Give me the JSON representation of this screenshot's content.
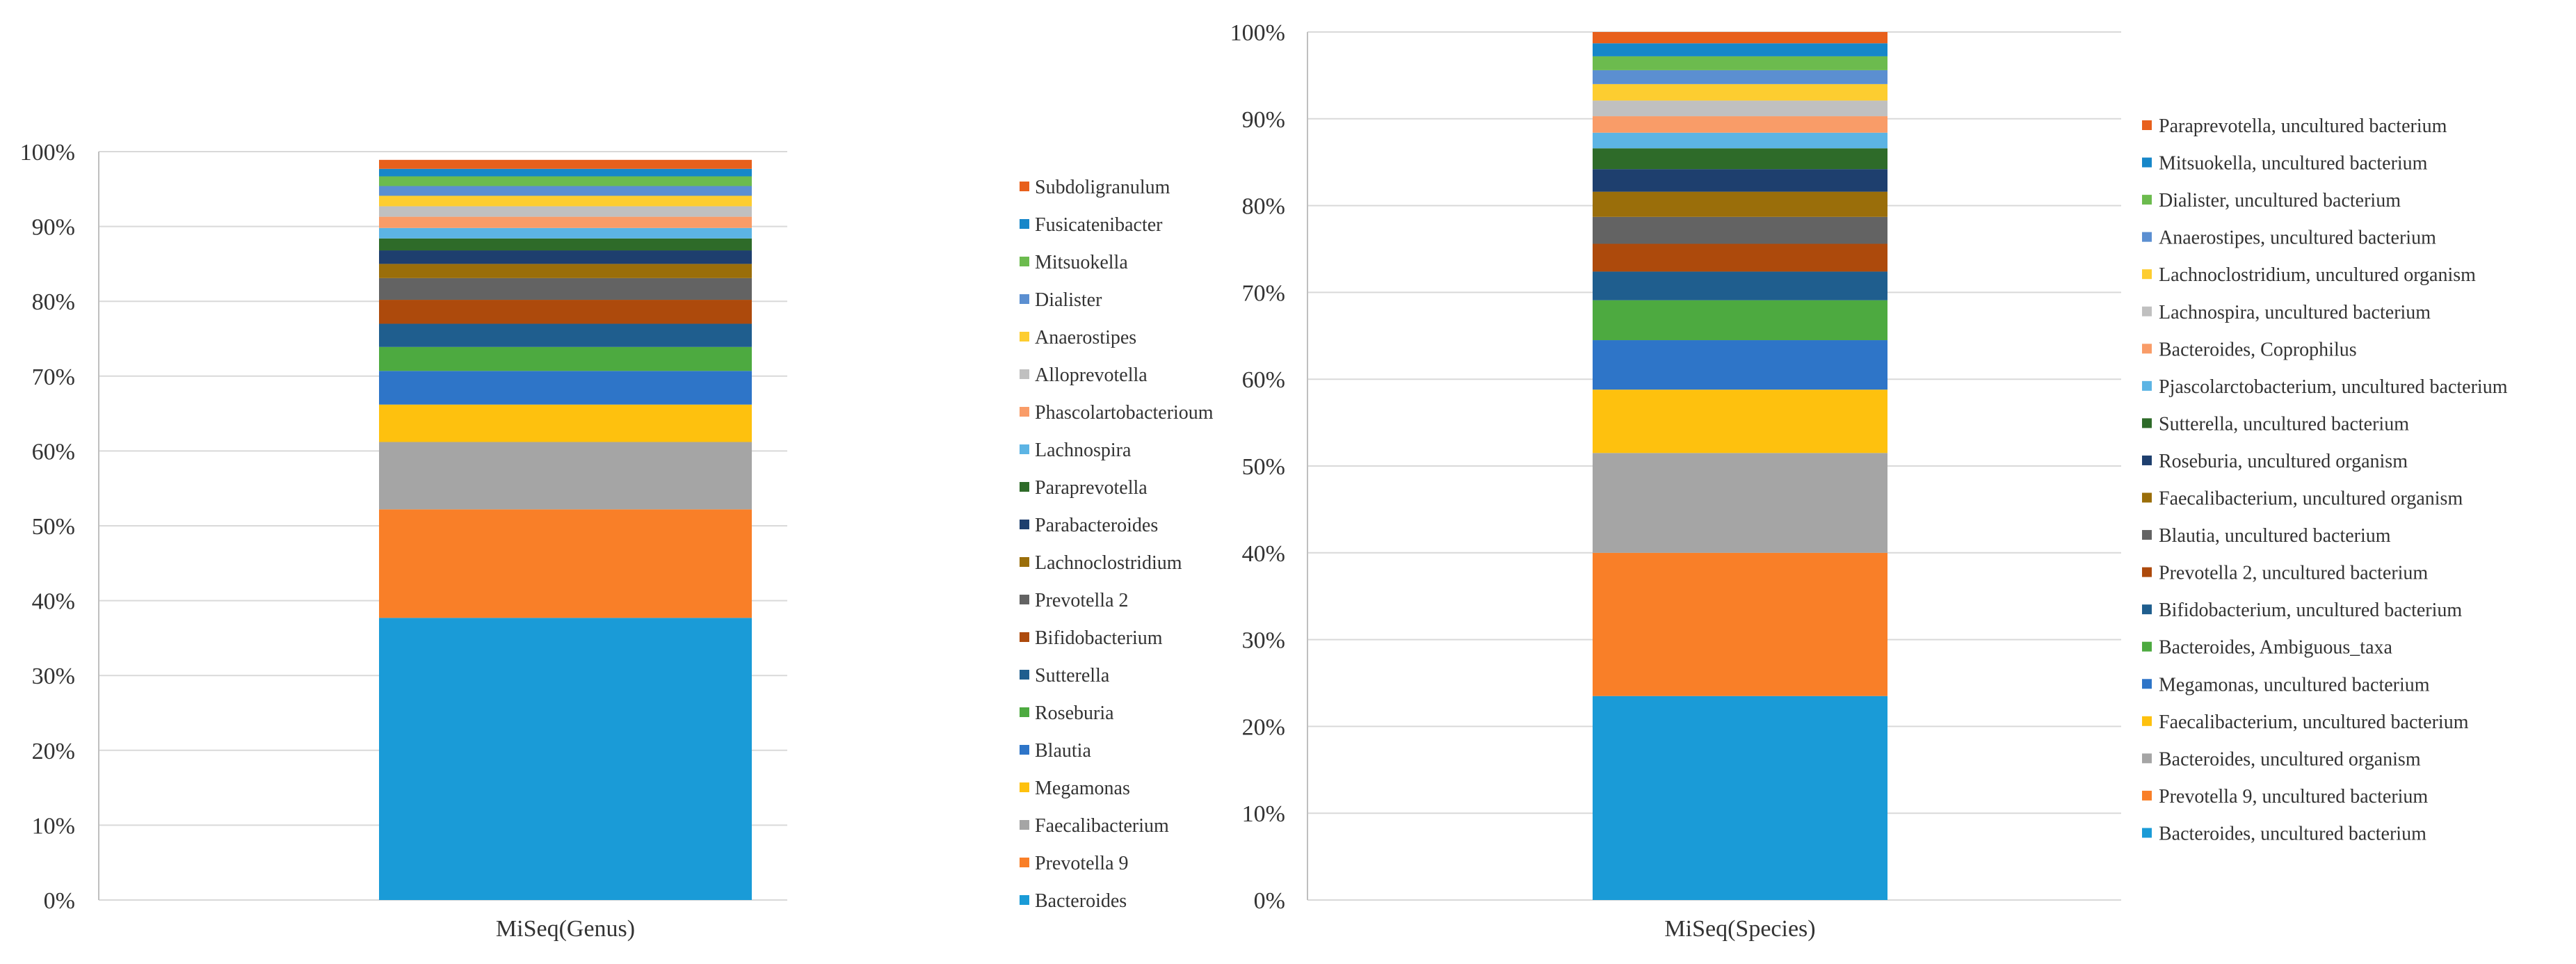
{
  "chart_data": [
    {
      "type": "stacked_bar",
      "title": "",
      "xlabel": "",
      "ylabel": "",
      "ylim": [
        0,
        100
      ],
      "y_ticks": [
        "0%",
        "10%",
        "20%",
        "30%",
        "40%",
        "50%",
        "60%",
        "70%",
        "80%",
        "90%",
        "100%"
      ],
      "categories": [
        "MiSeq(Genus)"
      ],
      "legend_position": "right",
      "series": [
        {
          "name": "Bacteroides",
          "value": 37.7,
          "color": "#1a9bd7"
        },
        {
          "name": "Prevotella 9",
          "value": 14.5,
          "color": "#f97f28"
        },
        {
          "name": "Faecalibacterium",
          "value": 9.0,
          "color": "#a5a5a5"
        },
        {
          "name": "Megamonas",
          "value": 5.0,
          "color": "#fec10e"
        },
        {
          "name": "Blautia",
          "value": 4.5,
          "color": "#2e75c8"
        },
        {
          "name": "Roseburia",
          "value": 3.2,
          "color": "#4daa40"
        },
        {
          "name": "Sutterella",
          "value": 3.1,
          "color": "#1f5e8e"
        },
        {
          "name": "Bifidobacterium",
          "value": 3.2,
          "color": "#ad4a0c"
        },
        {
          "name": "Prevotella 2",
          "value": 2.9,
          "color": "#636363"
        },
        {
          "name": "Lachnoclostridium",
          "value": 1.9,
          "color": "#9a6e0a"
        },
        {
          "name": "Parabacteroides",
          "value": 1.8,
          "color": "#1e3f6e"
        },
        {
          "name": "Paraprevotella",
          "value": 1.6,
          "color": "#2e6b29"
        },
        {
          "name": "Lachnospira",
          "value": 1.4,
          "color": "#5cb4e4"
        },
        {
          "name": "Phascolartobacterioum",
          "value": 1.5,
          "color": "#f99c68"
        },
        {
          "name": "Alloprevotella",
          "value": 1.4,
          "color": "#c0c0c0"
        },
        {
          "name": "Anaerostipes",
          "value": 1.4,
          "color": "#fdcd30"
        },
        {
          "name": "Dialister",
          "value": 1.3,
          "color": "#5b8fd1"
        },
        {
          "name": "Mitsuokella",
          "value": 1.3,
          "color": "#6cbb4e"
        },
        {
          "name": "Fusicatenibacter",
          "value": 1.0,
          "color": "#1687c9"
        },
        {
          "name": "Subdoligranulum",
          "value": 1.2,
          "color": "#e8601c"
        }
      ]
    },
    {
      "type": "stacked_bar",
      "title": "",
      "xlabel": "",
      "ylabel": "",
      "ylim": [
        0,
        100
      ],
      "y_ticks": [
        "0%",
        "10%",
        "20%",
        "30%",
        "40%",
        "50%",
        "60%",
        "70%",
        "80%",
        "90%",
        "100%"
      ],
      "categories": [
        "MiSeq(Species)"
      ],
      "legend_position": "right",
      "series": [
        {
          "name": "Bacteroides, uncultured bacterium",
          "value": 23.5,
          "color": "#1a9bd7"
        },
        {
          "name": "Prevotella 9, uncultured bacterium",
          "value": 16.5,
          "color": "#f97f28"
        },
        {
          "name": "Bacteroides, uncultured organism",
          "value": 11.5,
          "color": "#a5a5a5"
        },
        {
          "name": "Faecalibacterium, uncultured bacterium",
          "value": 7.3,
          "color": "#fec10e"
        },
        {
          "name": "Megamonas, uncultured bacterium",
          "value": 5.7,
          "color": "#2e75c8"
        },
        {
          "name": "Bacteroides, Ambiguous_taxa",
          "value": 4.6,
          "color": "#4daa40"
        },
        {
          "name": "Bifidobacterium, uncultured bacterium",
          "value": 3.3,
          "color": "#1f5e8e"
        },
        {
          "name": "Prevotella 2, uncultured bacterium",
          "value": 3.2,
          "color": "#ad4a0c"
        },
        {
          "name": "Blautia, uncultured bacterium",
          "value": 3.1,
          "color": "#636363"
        },
        {
          "name": "Faecalibacterium, uncultured organism",
          "value": 2.9,
          "color": "#9a6e0a"
        },
        {
          "name": "Roseburia, uncultured organism",
          "value": 2.6,
          "color": "#1e3f6e"
        },
        {
          "name": "Sutterella, uncultured bacterium",
          "value": 2.4,
          "color": "#2e6b29"
        },
        {
          "name": "Pjascolarctobacterium, uncultured bacterium",
          "value": 1.8,
          "color": "#5cb4e4"
        },
        {
          "name": "Bacteroides, Coprophilus",
          "value": 1.9,
          "color": "#f99c68"
        },
        {
          "name": "Lachnospira, uncultured bacterium",
          "value": 1.8,
          "color": "#c0c0c0"
        },
        {
          "name": "Lachnoclostridium, uncultured organism",
          "value": 1.9,
          "color": "#fdcd30"
        },
        {
          "name": "Anaerostipes, uncultured bacterium",
          "value": 1.6,
          "color": "#5b8fd1"
        },
        {
          "name": "Dialister, uncultured bacterium",
          "value": 1.6,
          "color": "#6cbb4e"
        },
        {
          "name": "Mitsuokella, uncultured bacterium",
          "value": 1.5,
          "color": "#1687c9"
        },
        {
          "name": "Paraprevotella, uncultured bacterium",
          "value": 1.3,
          "color": "#e8601c"
        }
      ]
    }
  ]
}
